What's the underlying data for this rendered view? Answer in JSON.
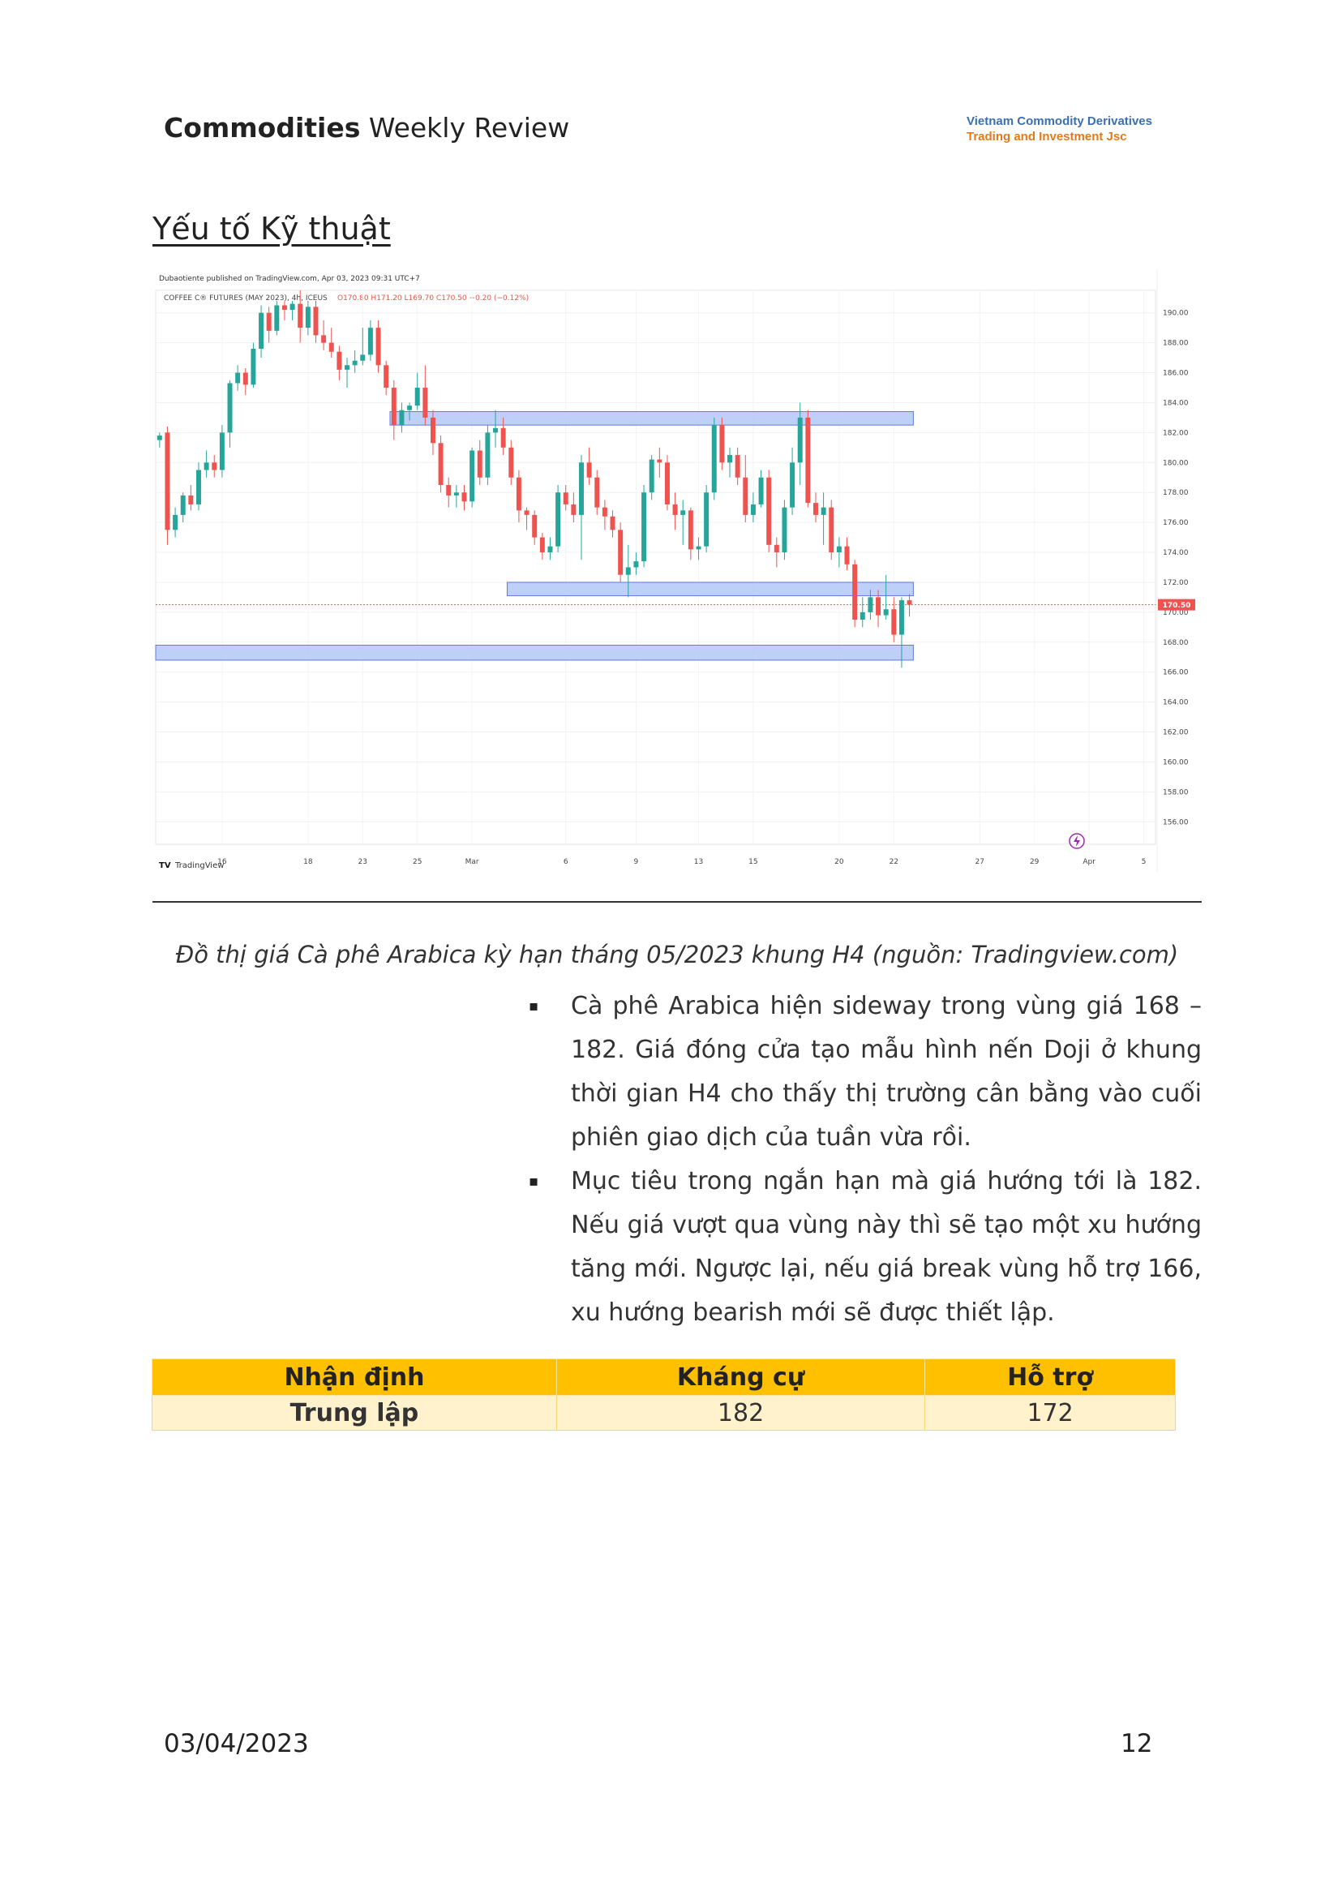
{
  "header": {
    "title_bold": "Commodities",
    "title_rest": " Weekly Review",
    "brand_line1": "Vietnam Commodity Derivatives",
    "brand_line2": "Trading and Investment Jsc"
  },
  "section_title": "Yếu tố Kỹ thuật",
  "chart_header": {
    "published": "Dubaotiente published on TradingView.com, Apr 03, 2023 09:31 UTC+7",
    "symbol": "COFFEE C® FUTURES (MAY 2023), 4h, ICEUS",
    "ohlc": "O170.80  H171.20  L169.70  C170.50  −0.20 (−0.12%)",
    "last_price": "170.50",
    "logo_text": "TradingView"
  },
  "chart_data": {
    "type": "candlestick",
    "title": "COFFEE C® FUTURES (MAY 2023), 4h, ICEUS",
    "ylim": [
      154.5,
      191.5
    ],
    "y_ticks": [
      "156.00",
      "158.00",
      "160.00",
      "162.00",
      "164.00",
      "166.00",
      "168.00",
      "170.00",
      "172.00",
      "174.00",
      "176.00",
      "178.00",
      "180.00",
      "182.00",
      "184.00",
      "186.00",
      "188.00",
      "190.00"
    ],
    "x_ticks": [
      "16",
      "18",
      "23",
      "25",
      "Mar",
      "6",
      "9",
      "13",
      "15",
      "20",
      "22",
      "27",
      "29",
      "Apr",
      "5"
    ],
    "last_close": 170.5,
    "zones": [
      {
        "from_bar": 30,
        "to_bar": 96,
        "low": 182.5,
        "high": 183.4
      },
      {
        "from_bar": 45,
        "to_bar": 96,
        "low": 171.1,
        "high": 172.0
      },
      {
        "from_bar": 0,
        "to_bar": 96,
        "low": 166.8,
        "high": 167.8
      }
    ],
    "candles": [
      [
        181.5,
        182.0,
        181.0,
        181.8
      ],
      [
        182.0,
        182.4,
        174.5,
        175.5
      ],
      [
        175.5,
        177.0,
        175.0,
        176.5
      ],
      [
        176.5,
        178.0,
        176.0,
        177.8
      ],
      [
        177.8,
        178.5,
        176.8,
        177.2
      ],
      [
        177.2,
        180.0,
        176.8,
        179.5
      ],
      [
        179.5,
        180.8,
        179.0,
        180.0
      ],
      [
        180.0,
        180.5,
        179.0,
        179.5
      ],
      [
        179.5,
        182.5,
        179.0,
        182.0
      ],
      [
        182.0,
        185.5,
        181.0,
        185.3
      ],
      [
        185.3,
        186.5,
        184.8,
        186.0
      ],
      [
        186.0,
        186.3,
        184.5,
        185.2
      ],
      [
        185.2,
        188.0,
        185.0,
        187.6
      ],
      [
        187.6,
        190.5,
        187.0,
        190.0
      ],
      [
        190.0,
        190.4,
        188.0,
        188.8
      ],
      [
        188.8,
        190.8,
        188.5,
        190.5
      ],
      [
        190.5,
        190.8,
        189.5,
        190.2
      ],
      [
        190.2,
        190.8,
        189.5,
        190.6
      ],
      [
        190.6,
        191.5,
        188.0,
        189.0
      ],
      [
        189.0,
        190.8,
        188.5,
        190.4
      ],
      [
        190.4,
        190.8,
        188.0,
        188.5
      ],
      [
        188.5,
        189.5,
        187.5,
        188.0
      ],
      [
        188.0,
        189.0,
        187.0,
        187.4
      ],
      [
        187.4,
        187.8,
        185.5,
        186.2
      ],
      [
        186.2,
        187.0,
        185.0,
        186.5
      ],
      [
        186.5,
        187.5,
        186.0,
        186.8
      ],
      [
        186.8,
        189.0,
        186.5,
        187.2
      ],
      [
        187.2,
        189.5,
        186.8,
        189.0
      ],
      [
        189.0,
        189.5,
        186.0,
        186.5
      ],
      [
        186.5,
        186.8,
        184.5,
        185.0
      ],
      [
        185.0,
        185.5,
        181.5,
        182.5
      ],
      [
        182.5,
        184.0,
        182.0,
        183.5
      ],
      [
        183.5,
        184.0,
        182.8,
        183.8
      ],
      [
        183.8,
        186.0,
        183.5,
        185.0
      ],
      [
        185.0,
        186.5,
        182.5,
        183.0
      ],
      [
        183.0,
        183.5,
        180.5,
        181.3
      ],
      [
        181.3,
        181.8,
        178.0,
        178.5
      ],
      [
        178.5,
        179.0,
        177.0,
        177.8
      ],
      [
        177.8,
        178.5,
        177.0,
        178.0
      ],
      [
        178.0,
        178.5,
        176.8,
        177.4
      ],
      [
        177.4,
        181.0,
        177.0,
        180.8
      ],
      [
        180.8,
        181.5,
        178.5,
        179.0
      ],
      [
        179.0,
        182.5,
        178.5,
        182.0
      ],
      [
        182.0,
        183.5,
        181.0,
        182.3
      ],
      [
        182.3,
        183.0,
        180.5,
        181.0
      ],
      [
        181.0,
        181.5,
        178.5,
        179.0
      ],
      [
        179.0,
        179.5,
        176.0,
        176.8
      ],
      [
        176.8,
        177.0,
        175.5,
        176.5
      ],
      [
        176.5,
        176.8,
        174.5,
        175.0
      ],
      [
        175.0,
        175.3,
        173.5,
        174.0
      ],
      [
        174.0,
        175.0,
        173.5,
        174.4
      ],
      [
        174.4,
        178.5,
        174.0,
        178.0
      ],
      [
        178.0,
        178.5,
        176.8,
        177.2
      ],
      [
        177.2,
        178.0,
        176.0,
        176.5
      ],
      [
        176.5,
        180.5,
        173.5,
        180.0
      ],
      [
        180.0,
        181.0,
        178.5,
        179.0
      ],
      [
        179.0,
        179.5,
        176.5,
        177.0
      ],
      [
        177.0,
        177.5,
        175.5,
        176.4
      ],
      [
        176.4,
        176.8,
        175.0,
        175.5
      ],
      [
        175.5,
        176.0,
        172.0,
        172.5
      ],
      [
        172.5,
        174.5,
        171.0,
        173.0
      ],
      [
        173.0,
        174.0,
        172.5,
        173.4
      ],
      [
        173.4,
        178.5,
        173.0,
        178.0
      ],
      [
        178.0,
        180.5,
        177.5,
        180.2
      ],
      [
        180.2,
        181.0,
        179.0,
        180.0
      ],
      [
        180.0,
        180.5,
        176.8,
        177.2
      ],
      [
        177.2,
        178.0,
        175.5,
        176.5
      ],
      [
        176.5,
        177.5,
        174.5,
        176.8
      ],
      [
        176.8,
        177.0,
        173.5,
        174.2
      ],
      [
        174.2,
        175.0,
        173.5,
        174.4
      ],
      [
        174.4,
        178.5,
        174.0,
        178.0
      ],
      [
        178.0,
        183.0,
        177.5,
        182.5
      ],
      [
        182.5,
        183.0,
        179.5,
        180.0
      ],
      [
        180.0,
        181.0,
        179.0,
        180.5
      ],
      [
        180.5,
        181.0,
        178.5,
        179.0
      ],
      [
        179.0,
        180.5,
        176.0,
        176.5
      ],
      [
        176.5,
        178.0,
        176.0,
        177.2
      ],
      [
        177.2,
        179.5,
        177.0,
        179.0
      ],
      [
        179.0,
        179.5,
        174.0,
        174.5
      ],
      [
        174.5,
        175.0,
        173.0,
        174.0
      ],
      [
        174.0,
        177.5,
        173.5,
        177.0
      ],
      [
        177.0,
        181.0,
        176.5,
        180.0
      ],
      [
        180.0,
        184.0,
        178.5,
        183.0
      ],
      [
        183.0,
        183.5,
        177.0,
        177.3
      ],
      [
        177.3,
        178.0,
        176.0,
        176.5
      ],
      [
        176.5,
        178.0,
        174.5,
        177.0
      ],
      [
        177.0,
        177.5,
        173.5,
        174.0
      ],
      [
        174.0,
        175.0,
        173.0,
        174.4
      ],
      [
        174.4,
        175.0,
        172.8,
        173.2
      ],
      [
        173.2,
        173.5,
        169.0,
        169.5
      ],
      [
        169.5,
        171.0,
        169.0,
        170.0
      ],
      [
        170.0,
        171.5,
        169.5,
        171.0
      ],
      [
        171.0,
        171.5,
        169.0,
        169.8
      ],
      [
        169.8,
        172.5,
        169.5,
        170.2
      ],
      [
        170.2,
        171.0,
        168.0,
        168.5
      ],
      [
        168.5,
        171.0,
        166.3,
        170.8
      ],
      [
        170.8,
        171.2,
        169.7,
        170.5
      ]
    ]
  },
  "caption": "Đồ thị  giá Cà phê Arabica kỳ hạn tháng 05/2023 khung H4 (nguồn: Tradingview.com)",
  "bullets": [
    "Cà phê Arabica hiện sideway trong vùng giá 168 – 182. Giá đóng cửa tạo mẫu hình nến Doji ở khung thời gian H4 cho thấy thị trường cân bằng vào cuối phiên giao dịch của tuần vừa rồi.",
    "Mục tiêu trong ngắn hạn mà giá hướng tới là 182. Nếu giá vượt qua vùng này thì sẽ tạo một xu hướng tăng mới. Ngược lại, nếu giá break vùng hỗ trợ 166, xu hướng bearish mới sẽ được thiết lập."
  ],
  "bullet_marker": "▪",
  "table": {
    "headers": [
      "Nhận định",
      "Kháng cự",
      "Hỗ trợ"
    ],
    "row": [
      "Trung lập",
      "182",
      "172"
    ]
  },
  "footer": {
    "date": "03/04/2023",
    "page": "12"
  },
  "colors": {
    "up": "#26a69a",
    "down": "#ef5350",
    "zone_fill": "#b3c7f7",
    "zone_stroke": "#5b7be0",
    "table_header": "#ffc000",
    "table_row": "#fff2cc"
  }
}
